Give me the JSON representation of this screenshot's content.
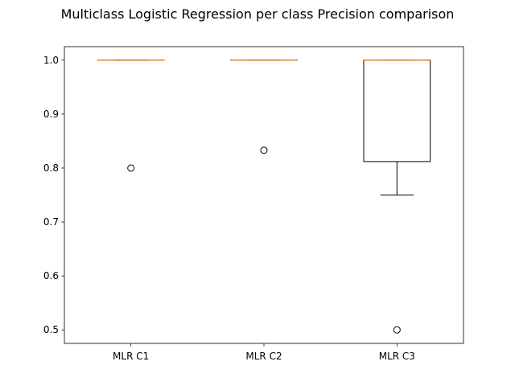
{
  "chart_data": {
    "type": "box",
    "title": "Multiclass Logistic Regression per class Precision comparison",
    "xlabel": "",
    "ylabel": "",
    "ylim": [
      0.475,
      1.025
    ],
    "yticks": [
      0.5,
      0.6,
      0.7,
      0.8,
      0.9,
      1.0
    ],
    "ytick_labels": [
      "0.5",
      "0.6",
      "0.7",
      "0.8",
      "0.9",
      "1.0"
    ],
    "grid": false,
    "categories": [
      "MLR C1",
      "MLR C2",
      "MLR C3"
    ],
    "boxes": [
      {
        "label": "MLR C1",
        "whisker_low": 1.0,
        "q1": 1.0,
        "median": 1.0,
        "q3": 1.0,
        "whisker_high": 1.0,
        "outliers": [
          0.8
        ]
      },
      {
        "label": "MLR C2",
        "whisker_low": 1.0,
        "q1": 1.0,
        "median": 1.0,
        "q3": 1.0,
        "whisker_high": 1.0,
        "outliers": [
          0.833
        ]
      },
      {
        "label": "MLR C3",
        "whisker_low": 0.75,
        "q1": 0.812,
        "median": 1.0,
        "q3": 1.0,
        "whisker_high": 1.0,
        "outliers": [
          0.5
        ]
      }
    ],
    "colors": {
      "box": "#000000",
      "median": "#ff7f0e"
    }
  }
}
